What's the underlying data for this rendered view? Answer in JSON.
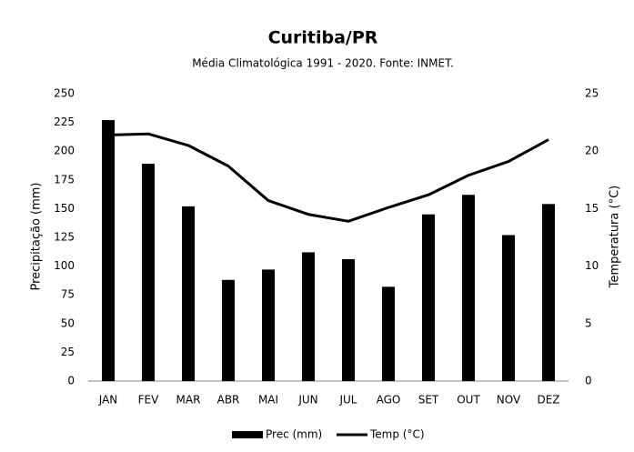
{
  "chart_data": {
    "type": "bar-line",
    "title": "Curitiba/PR",
    "subtitle": "Média Climatológica 1991 - 2020. Fonte: INMET.",
    "ylabel": "Precipitação (mm)",
    "y2label": "Temperatura (°C)",
    "categories": [
      "JAN",
      "FEV",
      "MAR",
      "ABR",
      "MAI",
      "JUN",
      "JUL",
      "AGO",
      "SET",
      "OUT",
      "NOV",
      "DEZ"
    ],
    "series": [
      {
        "name": "Prec (mm)",
        "type": "bar",
        "color": "#000000",
        "values": [
          227,
          189,
          152,
          88,
          97,
          112,
          106,
          82,
          145,
          162,
          127,
          154
        ]
      },
      {
        "name": "Temp (°C)",
        "type": "line",
        "axis": "y2",
        "color": "#000000",
        "values": [
          21.4,
          21.5,
          20.5,
          18.7,
          15.7,
          14.5,
          13.9,
          15.1,
          16.2,
          17.9,
          19.1,
          21.0
        ]
      }
    ],
    "ylim": [
      0,
      250
    ],
    "yticks": [
      0,
      25,
      50,
      75,
      100,
      125,
      150,
      175,
      200,
      225,
      250
    ],
    "y2lim": [
      0,
      25
    ],
    "y2ticks": [
      0,
      5,
      10,
      15,
      20,
      25
    ],
    "grid": false,
    "legend": "bottom"
  }
}
